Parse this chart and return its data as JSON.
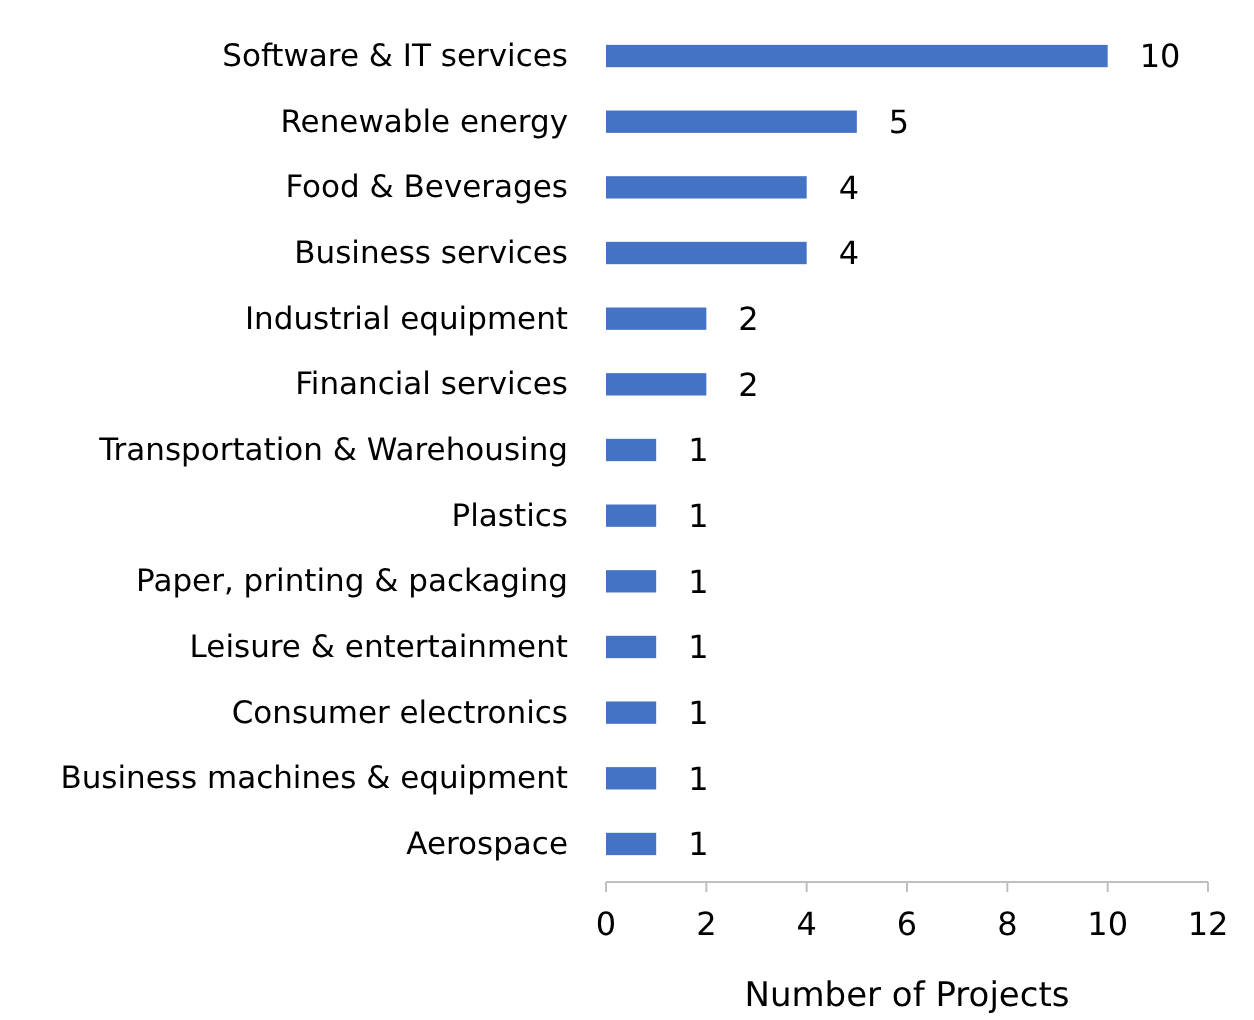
{
  "chart_data": {
    "type": "bar",
    "orientation": "horizontal",
    "xlabel": "Number of Projects",
    "categories": [
      "Software & IT services",
      "Renewable energy",
      "Food & Beverages",
      "Business services",
      "Industrial equipment",
      "Financial services",
      "Transportation & Warehousing",
      "Plastics",
      "Paper, printing & packaging",
      "Leisure & entertainment",
      "Consumer electronics",
      "Business machines & equipment",
      "Aerospace"
    ],
    "values": [
      10,
      5,
      4,
      4,
      2,
      2,
      1,
      1,
      1,
      1,
      1,
      1,
      1
    ],
    "color": "#4472c4",
    "xlim": [
      0,
      12
    ],
    "xticks": [
      0,
      2,
      4,
      6,
      8,
      10,
      12
    ],
    "data_labels": true
  }
}
